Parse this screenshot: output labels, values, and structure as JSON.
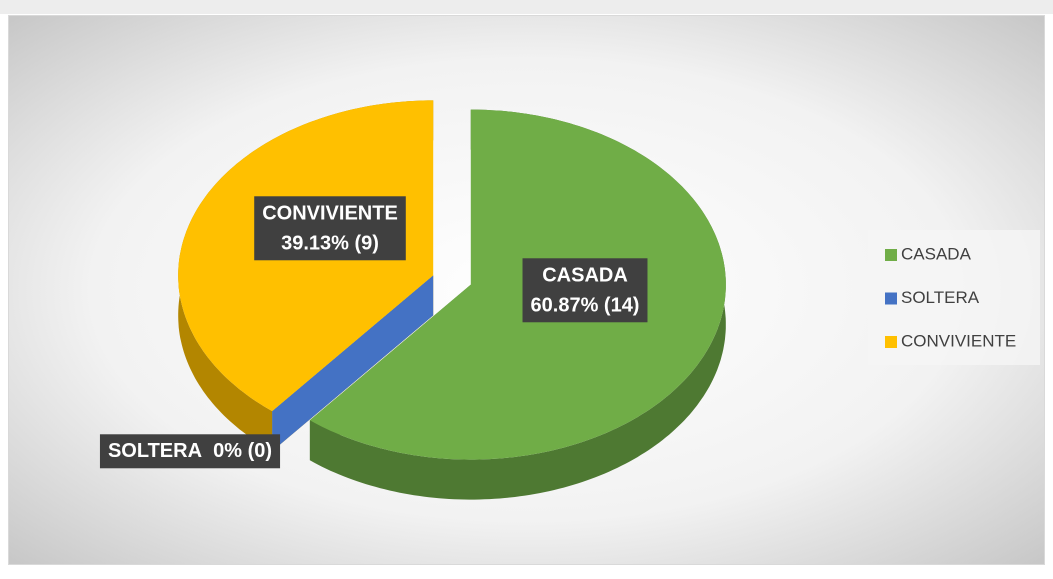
{
  "chart_data": {
    "type": "pie",
    "categories": [
      "CASADA",
      "SOLTERA",
      "CONVIVIENTE"
    ],
    "values": [
      60.87,
      0,
      39.13
    ],
    "value_labels": [
      "60.87% (14)",
      "0% (0)",
      "39.13% (9)"
    ],
    "colors": [
      "#70ad47",
      "#4472c4",
      "#ffc000"
    ],
    "legend": "right",
    "three_d": true
  }
}
